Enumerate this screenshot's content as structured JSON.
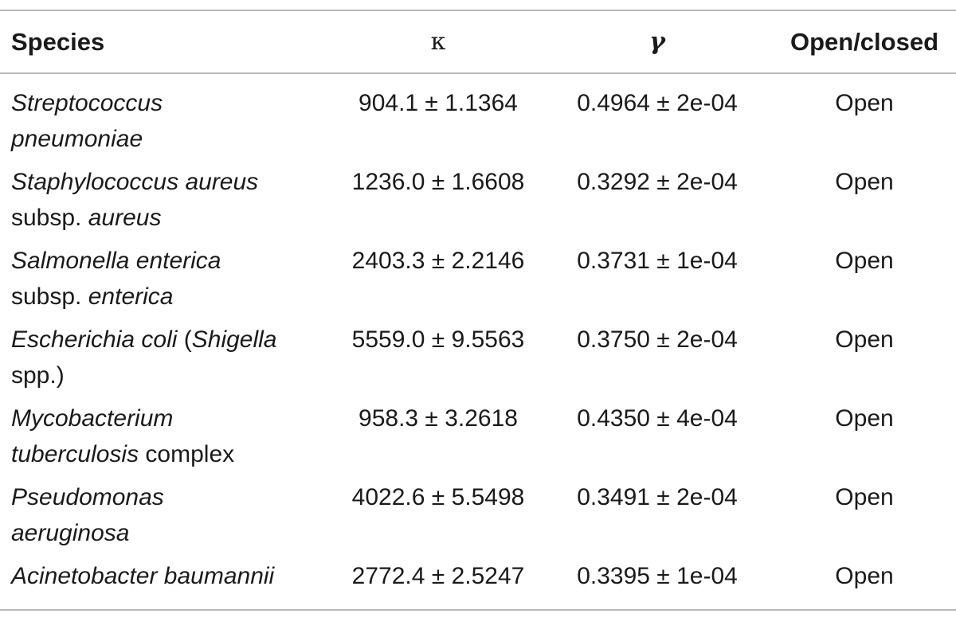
{
  "table": {
    "headers": {
      "species": "Species",
      "kappa": "κ",
      "gamma": "γ",
      "status": "Open/closed"
    },
    "rows": [
      {
        "species_line1": [
          {
            "text": "Streptococcus",
            "italic": true
          }
        ],
        "species_line2": [
          {
            "text": "pneumoniae",
            "italic": true
          }
        ],
        "kappa": "904.1 ± 1.1364",
        "gamma": "0.4964 ± 2e-04",
        "status": "Open"
      },
      {
        "species_line1": [
          {
            "text": "Staphylococcus aureus",
            "italic": true
          }
        ],
        "species_line2": [
          {
            "text": "subsp. ",
            "italic": false
          },
          {
            "text": "aureus",
            "italic": true
          }
        ],
        "kappa": "1236.0 ± 1.6608",
        "gamma": "0.3292 ± 2e-04",
        "status": "Open"
      },
      {
        "species_line1": [
          {
            "text": "Salmonella enterica",
            "italic": true
          }
        ],
        "species_line2": [
          {
            "text": "subsp. ",
            "italic": false
          },
          {
            "text": "enterica",
            "italic": true
          }
        ],
        "kappa": "2403.3 ± 2.2146",
        "gamma": "0.3731 ± 1e-04",
        "status": "Open"
      },
      {
        "species_line1": [
          {
            "text": "Escherichia coli",
            "italic": true
          },
          {
            "text": " (",
            "italic": false
          },
          {
            "text": "Shigella",
            "italic": true
          }
        ],
        "species_line2": [
          {
            "text": "spp.)",
            "italic": false
          }
        ],
        "kappa": "5559.0 ± 9.5563",
        "gamma": "0.3750 ± 2e-04",
        "status": "Open"
      },
      {
        "species_line1": [
          {
            "text": "Mycobacterium",
            "italic": true
          }
        ],
        "species_line2": [
          {
            "text": "tuberculosis",
            "italic": true
          },
          {
            "text": " complex",
            "italic": false
          }
        ],
        "kappa": "958.3 ± 3.2618",
        "gamma": "0.4350 ± 4e-04",
        "status": "Open"
      },
      {
        "species_line1": [
          {
            "text": "Pseudomonas",
            "italic": true
          }
        ],
        "species_line2": [
          {
            "text": "aeruginosa",
            "italic": true
          }
        ],
        "kappa": "4022.6 ± 5.5498",
        "gamma": "0.3491 ± 2e-04",
        "status": "Open"
      },
      {
        "species_line1": [
          {
            "text": "Acinetobacter baumannii",
            "italic": true
          }
        ],
        "species_line2": [],
        "kappa": "2772.4 ± 2.5247",
        "gamma": "0.3395 ± 1e-04",
        "status": "Open"
      }
    ]
  }
}
